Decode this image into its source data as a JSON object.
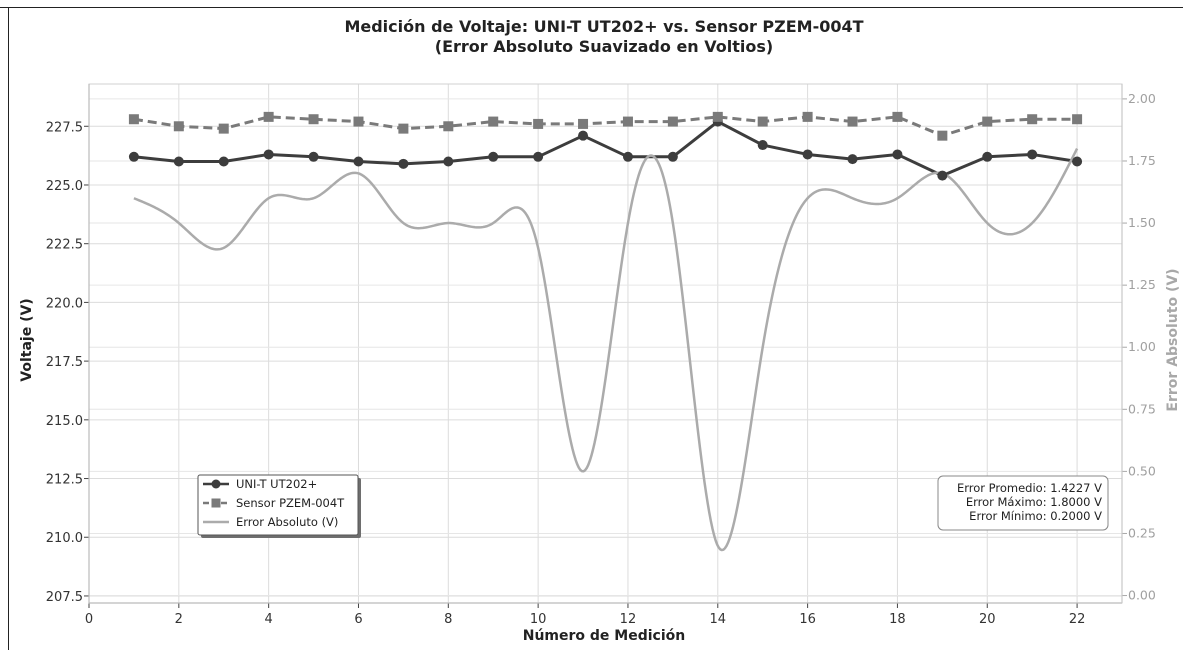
{
  "chart_data": {
    "type": "line",
    "title": "Medición de Voltaje: UNI-T UT202+ vs. Sensor PZEM-004T",
    "subtitle": "(Error Absoluto Suavizado en Voltios)",
    "xlabel": "Número de Medición",
    "ylabel": "Voltaje (V)",
    "y2label": "Error Absoluto (V)",
    "xlim": [
      0,
      23
    ],
    "ylim": [
      207.2,
      229.3
    ],
    "y2lim": [
      -0.03,
      2.06
    ],
    "x_ticks": [
      "0",
      "2",
      "4",
      "6",
      "8",
      "10",
      "12",
      "14",
      "16",
      "18",
      "20",
      "22"
    ],
    "y_ticks": [
      "207.5",
      "210.0",
      "212.5",
      "215.0",
      "217.5",
      "220.0",
      "222.5",
      "225.0",
      "227.5"
    ],
    "y2_ticks": [
      "0.00",
      "0.25",
      "0.50",
      "0.75",
      "1.00",
      "1.25",
      "1.50",
      "1.75",
      "2.00"
    ],
    "grid": true,
    "legend_position": "lower-left",
    "x": [
      1,
      2,
      3,
      4,
      5,
      6,
      7,
      8,
      9,
      10,
      11,
      12,
      13,
      14,
      15,
      16,
      17,
      18,
      19,
      20,
      21,
      22
    ],
    "series": [
      {
        "name": "UNI-T UT202+",
        "axis": "left",
        "style": "solid-circle",
        "color": "#3d3d3d",
        "values": [
          226.2,
          226.0,
          226.0,
          226.3,
          226.2,
          226.0,
          225.9,
          226.0,
          226.2,
          226.2,
          227.1,
          226.2,
          226.2,
          227.7,
          226.7,
          226.3,
          226.1,
          226.3,
          225.4,
          226.2,
          226.3,
          226.0
        ]
      },
      {
        "name": "Sensor PZEM-004T",
        "axis": "left",
        "style": "dashed-square",
        "color": "#7a7a7a",
        "values": [
          227.8,
          227.5,
          227.4,
          227.9,
          227.8,
          227.7,
          227.4,
          227.5,
          227.7,
          227.6,
          227.6,
          227.7,
          227.7,
          227.9,
          227.7,
          227.9,
          227.7,
          227.9,
          227.1,
          227.7,
          227.8,
          227.8
        ]
      },
      {
        "name": "Error Absoluto (V)",
        "axis": "right",
        "style": "smooth-line",
        "color": "#ababab",
        "values": [
          1.6,
          1.5,
          1.4,
          1.6,
          1.6,
          1.7,
          1.5,
          1.5,
          1.5,
          1.4,
          0.5,
          1.5,
          1.5,
          0.2,
          1.0,
          1.6,
          1.6,
          1.6,
          1.7,
          1.5,
          1.5,
          1.8
        ]
      }
    ],
    "stats_box": {
      "position": "lower-right",
      "lines": [
        "Error Promedio: 1.4227 V",
        "Error Máximo: 1.8000 V",
        "Error Mínimo: 0.2000 V"
      ]
    }
  }
}
